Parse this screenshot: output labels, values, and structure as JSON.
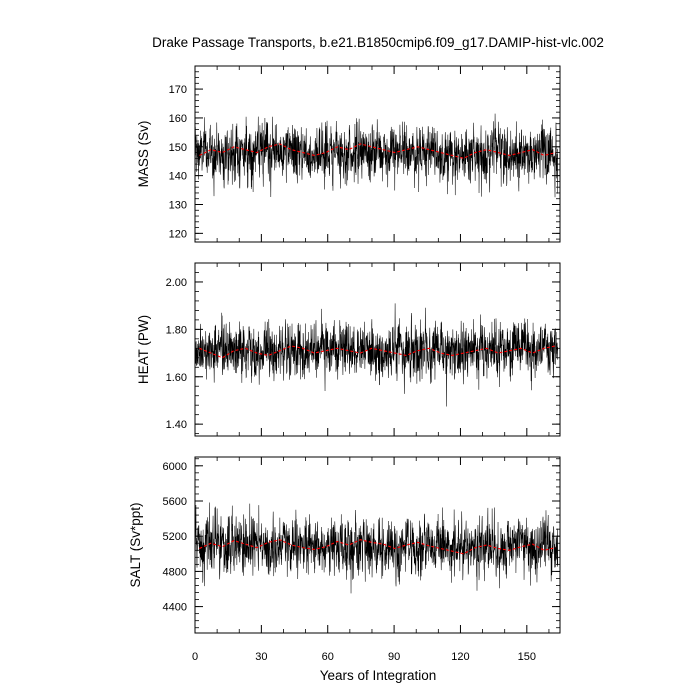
{
  "figure": {
    "title": "Drake Passage Transports, b.e21.B1850cmip6.f09_g17.DAMIP-hist-vlc.002",
    "xlabel": "Years of Integration"
  },
  "chart_data": [
    {
      "type": "line",
      "ylabel": "MASS (Sv)",
      "xlim": [
        0,
        165
      ],
      "ylim": [
        117,
        178
      ],
      "yticks": [
        120,
        130,
        140,
        150,
        160,
        170
      ],
      "ytick_labels": [
        "120",
        "130",
        "140",
        "150",
        "160",
        "170"
      ],
      "xticks": [
        0,
        30,
        60,
        90,
        120,
        150
      ],
      "series": [
        {
          "style": "monthly",
          "color": "#000000",
          "mean": 148,
          "spread": 11,
          "x_start": 0,
          "x_end": 164,
          "n_points": 1968
        },
        {
          "style": "running-mean",
          "color": "#ff0000",
          "values": [
            147,
            149,
            148,
            150,
            149,
            148,
            150,
            151,
            149,
            148,
            147,
            148,
            150,
            149,
            151,
            150,
            149,
            148,
            149,
            150,
            149,
            148,
            147,
            146,
            148,
            149,
            148,
            147,
            148,
            149,
            147,
            148
          ]
        }
      ]
    },
    {
      "type": "line",
      "ylabel": "HEAT (PW)",
      "xlim": [
        0,
        165
      ],
      "ylim": [
        1.35,
        2.08
      ],
      "yticks": [
        1.4,
        1.6,
        1.8,
        2.0
      ],
      "ytick_labels": [
        "1.40",
        "1.60",
        "1.80",
        "2.00"
      ],
      "xticks": [
        0,
        30,
        60,
        90,
        120,
        150
      ],
      "series": [
        {
          "style": "monthly",
          "color": "#000000",
          "mean": 1.71,
          "spread": 0.13,
          "x_start": 0,
          "x_end": 164,
          "n_points": 1968
        },
        {
          "style": "running-mean",
          "color": "#ff0000",
          "values": [
            1.72,
            1.7,
            1.68,
            1.71,
            1.72,
            1.7,
            1.69,
            1.71,
            1.73,
            1.72,
            1.7,
            1.71,
            1.72,
            1.71,
            1.7,
            1.72,
            1.71,
            1.7,
            1.69,
            1.71,
            1.72,
            1.7,
            1.69,
            1.7,
            1.71,
            1.72,
            1.7,
            1.71,
            1.72,
            1.7,
            1.72,
            1.73
          ]
        }
      ]
    },
    {
      "type": "line",
      "ylabel": "SALT (Sv*ppt)",
      "xlim": [
        0,
        165
      ],
      "ylim": [
        4100,
        6100
      ],
      "yticks": [
        4400,
        4800,
        5200,
        5600,
        6000
      ],
      "ytick_labels": [
        "4400",
        "4800",
        "5200",
        "5600",
        "6000"
      ],
      "xticks": [
        0,
        30,
        60,
        90,
        120,
        150
      ],
      "xtick_labels": [
        "0",
        "30",
        "60",
        "90",
        "120",
        "150"
      ],
      "series": [
        {
          "style": "monthly",
          "color": "#000000",
          "mean": 5080,
          "spread": 380,
          "x_start": 0,
          "x_end": 164,
          "n_points": 1968
        },
        {
          "style": "running-mean",
          "color": "#ff0000",
          "values": [
            5060,
            5120,
            5080,
            5150,
            5110,
            5070,
            5130,
            5160,
            5100,
            5070,
            5050,
            5080,
            5140,
            5100,
            5160,
            5130,
            5110,
            5060,
            5100,
            5130,
            5090,
            5060,
            5030,
            5000,
            5070,
            5100,
            5060,
            5040,
            5080,
            5110,
            5040,
            5070
          ]
        }
      ]
    }
  ]
}
